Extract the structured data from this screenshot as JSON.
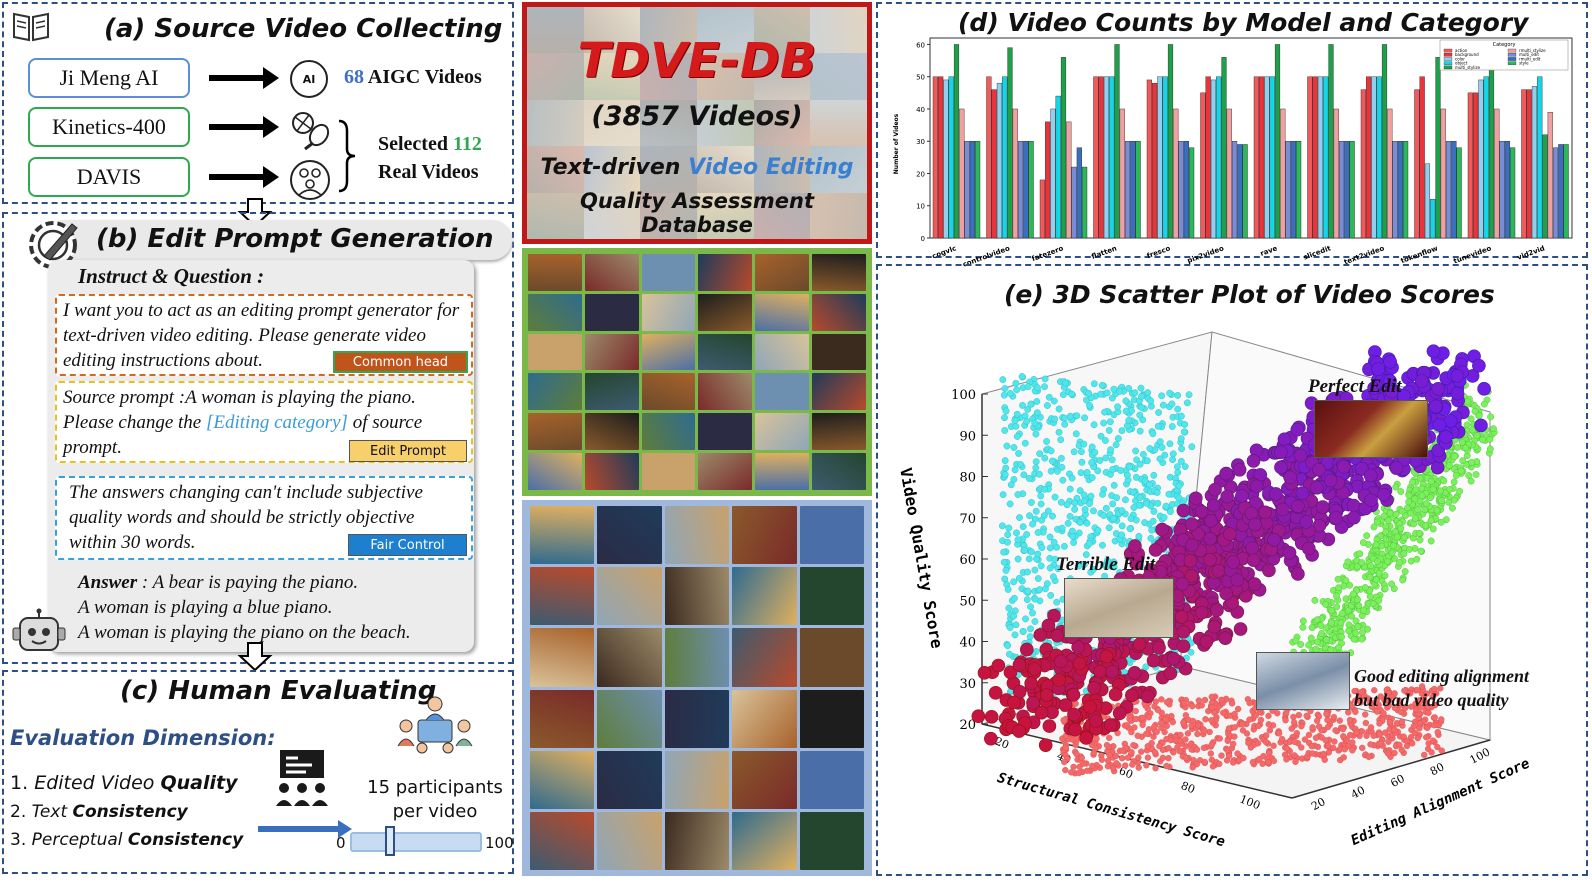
{
  "panel_a": {
    "title": "(a) Source Video Collecting",
    "sources": [
      "Ji Meng AI",
      "Kinetics-400",
      "DAVIS"
    ],
    "aigc_count": "68",
    "aigc_label": "AIGC Videos",
    "ai_icon_label": "AI",
    "selected_prefix": "Selected",
    "selected_count": "112",
    "selected_suffix": "Real Videos",
    "colors": {
      "ji_meng": "#5b8fd6",
      "green": "#2fa84f",
      "count_blue": "#3f6fc6",
      "count_green": "#2fa84f"
    }
  },
  "panel_b": {
    "title": "(b) Edit Prompt Generation",
    "instruct_label": "Instruct & Question :",
    "box1_text": "I want you to act as an editing prompt generator for text-driven video editing. Please generate video editing instructions about.",
    "box1_tag": "Common head",
    "box2_text_a": "Source prompt :A woman is playing the piano. Please change the ",
    "box2_highlight": "[Editing category]",
    "box2_text_b": " of source prompt.",
    "box2_tag": "Edit Prompt",
    "box3_text": "The answers changing can't include subjective quality words and should be strictly objective within 30 words.",
    "box3_tag": "Fair Control",
    "answer_label": "Answer",
    "answer_lines": [
      " : A bear is paying the piano.",
      "A woman is playing a blue piano.",
      "A woman is playing the piano on the beach."
    ]
  },
  "panel_c": {
    "title": "(c) Human Evaluating",
    "dimension_label": "Evaluation Dimension:",
    "dimensions": [
      {
        "num": "1.",
        "a": "Edited Video ",
        "b": "Quality"
      },
      {
        "num": "2.",
        "a": "Text ",
        "b": "Consistency"
      },
      {
        "num": "3.",
        "a": "Perceptual ",
        "b": "Consistency"
      }
    ],
    "participants": "15 participants",
    "per_video": "per video",
    "scale_min": "0",
    "scale_max": "100",
    "slider_value": 0.3
  },
  "center": {
    "db_name": "TDVE-DB",
    "db_count": "(3857 Videos)",
    "desc_a": "Text-driven ",
    "desc_highlight": "Video Editing",
    "desc_b": "Quality Assessment Database"
  },
  "panel_d": {
    "title": "(d) Video Counts by Model and Category"
  },
  "panel_e": {
    "title": "(e) 3D Scatter Plot of Video Scores",
    "annotations": [
      "Perfect Edit",
      "Terrible Edit",
      "Good editing alignment",
      "but bad video quality"
    ]
  },
  "chart_data": [
    {
      "type": "bar",
      "title": "(d) Video Counts by Model and Category",
      "xlabel": "",
      "ylabel": "Number of Videos",
      "ylim": [
        0,
        62
      ],
      "yticks": [
        "0",
        "10",
        "20",
        "30",
        "40",
        "50",
        "60"
      ],
      "legend_title": "Category",
      "categories": [
        "cogvlc",
        "controlvideo",
        "fatezero",
        "flatten",
        "fresco",
        "pix2video",
        "rave",
        "slicedit",
        "text2video",
        "tokenflow",
        "tunevideo",
        "vid2vid"
      ],
      "series": [
        {
          "name": "action",
          "color": "#f05a5a",
          "values": [
            50,
            50,
            18,
            50,
            49,
            45,
            50,
            50,
            46,
            46,
            45,
            46
          ]
        },
        {
          "name": "background",
          "color": "#e8343a",
          "values": [
            50,
            46,
            36,
            50,
            48,
            50,
            50,
            50,
            50,
            50,
            45,
            46
          ]
        },
        {
          "name": "color",
          "color": "#8fd0f0",
          "values": [
            49,
            48,
            40,
            50,
            50,
            49,
            50,
            50,
            50,
            23,
            49,
            47
          ]
        },
        {
          "name": "object",
          "color": "#13d6e8",
          "values": [
            50,
            50,
            44,
            50,
            50,
            50,
            50,
            50,
            50,
            12,
            50,
            50
          ]
        },
        {
          "name": "multi_stylize",
          "color": "#1ea04a",
          "values": [
            60,
            59,
            56,
            60,
            60,
            56,
            60,
            60,
            60,
            56,
            54,
            32
          ]
        },
        {
          "name": "rmulti_stylize",
          "color": "#f0a0a0",
          "values": [
            40,
            40,
            36,
            40,
            40,
            40,
            40,
            40,
            40,
            40,
            40,
            39
          ]
        },
        {
          "name": "multi_edit",
          "color": "#7a8cd6",
          "values": [
            30,
            30,
            22,
            30,
            30,
            30,
            30,
            30,
            30,
            30,
            30,
            28
          ]
        },
        {
          "name": "rmulti_edit",
          "color": "#3a6fc0",
          "values": [
            30,
            30,
            28,
            30,
            30,
            29,
            30,
            30,
            30,
            30,
            30,
            29
          ]
        },
        {
          "name": "style",
          "color": "#2bb85a",
          "values": [
            30,
            30,
            22,
            30,
            28,
            29,
            30,
            30,
            30,
            28,
            28,
            29
          ]
        }
      ]
    },
    {
      "type": "scatter",
      "title": "(e) 3D Scatter Plot of Video Scores",
      "xlabel": "Structural Consistency Score",
      "ylabel": "Editing Alignment Score",
      "zlabel": "Video Quality Score",
      "xticks": [
        "20",
        "40",
        "60",
        "80",
        "100"
      ],
      "yticks": [
        "20",
        "40",
        "60",
        "80",
        "100"
      ],
      "zticks": [
        "20",
        "30",
        "40",
        "50",
        "60",
        "70",
        "80",
        "90",
        "100"
      ],
      "zlim": [
        20,
        100
      ]
    }
  ]
}
